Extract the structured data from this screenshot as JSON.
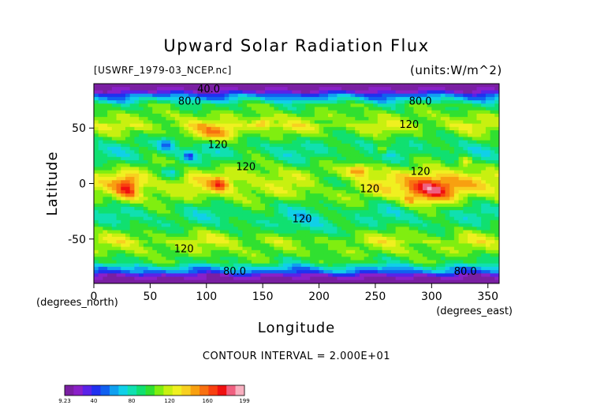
{
  "chart_data": {
    "type": "heatmap",
    "title": "Upward Solar Radiation Flux",
    "file_label": "[USWRF_1979-03_NCEP.nc]",
    "units_label": "(units:W/m^2)",
    "xlabel": "Longitude",
    "ylabel": "Latitude",
    "x_unit_label": "(degrees_east)",
    "y_unit_label": "(degrees_north)",
    "xlim": [
      0,
      360
    ],
    "ylim": [
      -90,
      90
    ],
    "x_ticks": [
      0,
      50,
      100,
      150,
      200,
      250,
      300,
      350
    ],
    "y_ticks": [
      50,
      0,
      -50
    ],
    "contour_note": "CONTOUR INTERVAL = 2.000E+01",
    "contour_labels": [
      {
        "text": "40.0",
        "lon": 102,
        "lat": 82
      },
      {
        "text": "80.0",
        "lon": 85,
        "lat": 71
      },
      {
        "text": "80.0",
        "lon": 290,
        "lat": 71
      },
      {
        "text": "120",
        "lon": 280,
        "lat": 50
      },
      {
        "text": "120",
        "lon": 110,
        "lat": 32
      },
      {
        "text": "120",
        "lon": 135,
        "lat": 12
      },
      {
        "text": "120",
        "lon": 290,
        "lat": 8
      },
      {
        "text": "120",
        "lon": 245,
        "lat": -8
      },
      {
        "text": "120",
        "lon": 185,
        "lat": -35
      },
      {
        "text": "120",
        "lon": 80,
        "lat": -62
      },
      {
        "text": "80.0",
        "lon": 125,
        "lat": -82
      },
      {
        "text": "80.0",
        "lon": 330,
        "lat": -82
      }
    ],
    "colorbar": {
      "min_label": "9.23",
      "max_label": "199",
      "tick_labels": [
        "40",
        "80",
        "120",
        "160"
      ],
      "tick_values": [
        40,
        80,
        120,
        160
      ],
      "min": 9.23,
      "max": 199,
      "colors": [
        "#7a1fa2",
        "#8a20c8",
        "#5a22e8",
        "#2030f0",
        "#1060f0",
        "#10a0f0",
        "#10d0e8",
        "#10e0b0",
        "#10e070",
        "#30e030",
        "#80ee10",
        "#c8f010",
        "#f0f020",
        "#f8d020",
        "#f8a010",
        "#f87010",
        "#f84010",
        "#f01010",
        "#f06080",
        "#f8b0c0"
      ]
    }
  }
}
